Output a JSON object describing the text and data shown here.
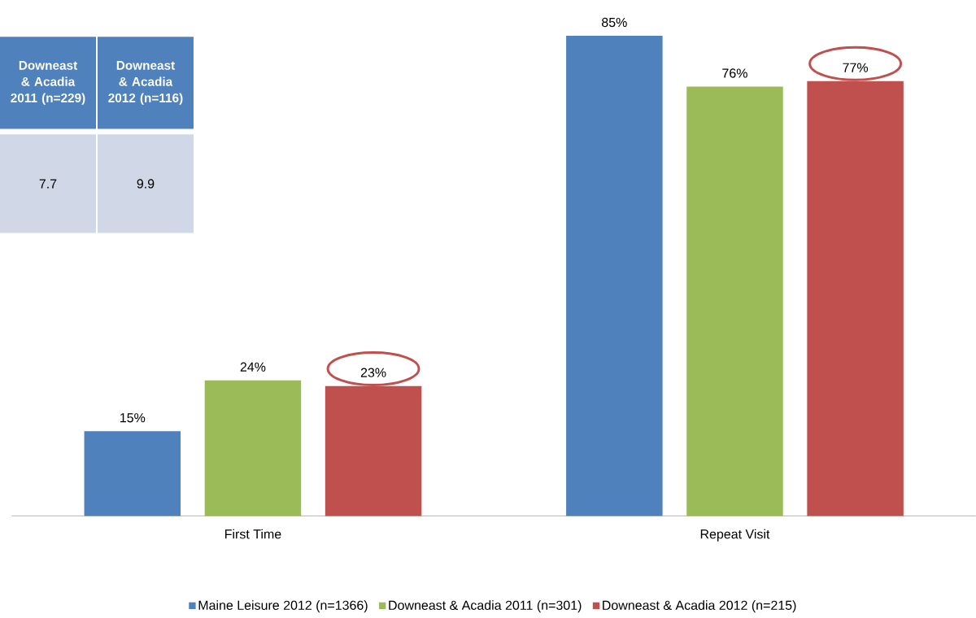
{
  "chart_data": {
    "type": "bar",
    "categories": [
      "First Time",
      "Repeat Visit"
    ],
    "series": [
      {
        "name": "Maine Leisure 2012 (n=1366)",
        "color": "#4f81bd",
        "values": [
          15,
          85
        ],
        "value_labels": [
          "15%",
          "85%"
        ]
      },
      {
        "name": "Downeast & Acadia 2011 (n=301)",
        "color": "#9bbb59",
        "values": [
          24,
          76
        ],
        "value_labels": [
          "24%",
          "76%"
        ]
      },
      {
        "name": "Downeast & Acadia 2012 (n=215)",
        "color": "#c0504d",
        "values": [
          23,
          77
        ],
        "value_labels": [
          "23%",
          "77%"
        ]
      }
    ],
    "annotations": [
      "Downeast & Acadia 2011 (n=229)",
      "Downeast & Acadia 2012 (n=116)",
      "7.7",
      "9.9"
    ],
    "legend": "bottom"
  }
}
